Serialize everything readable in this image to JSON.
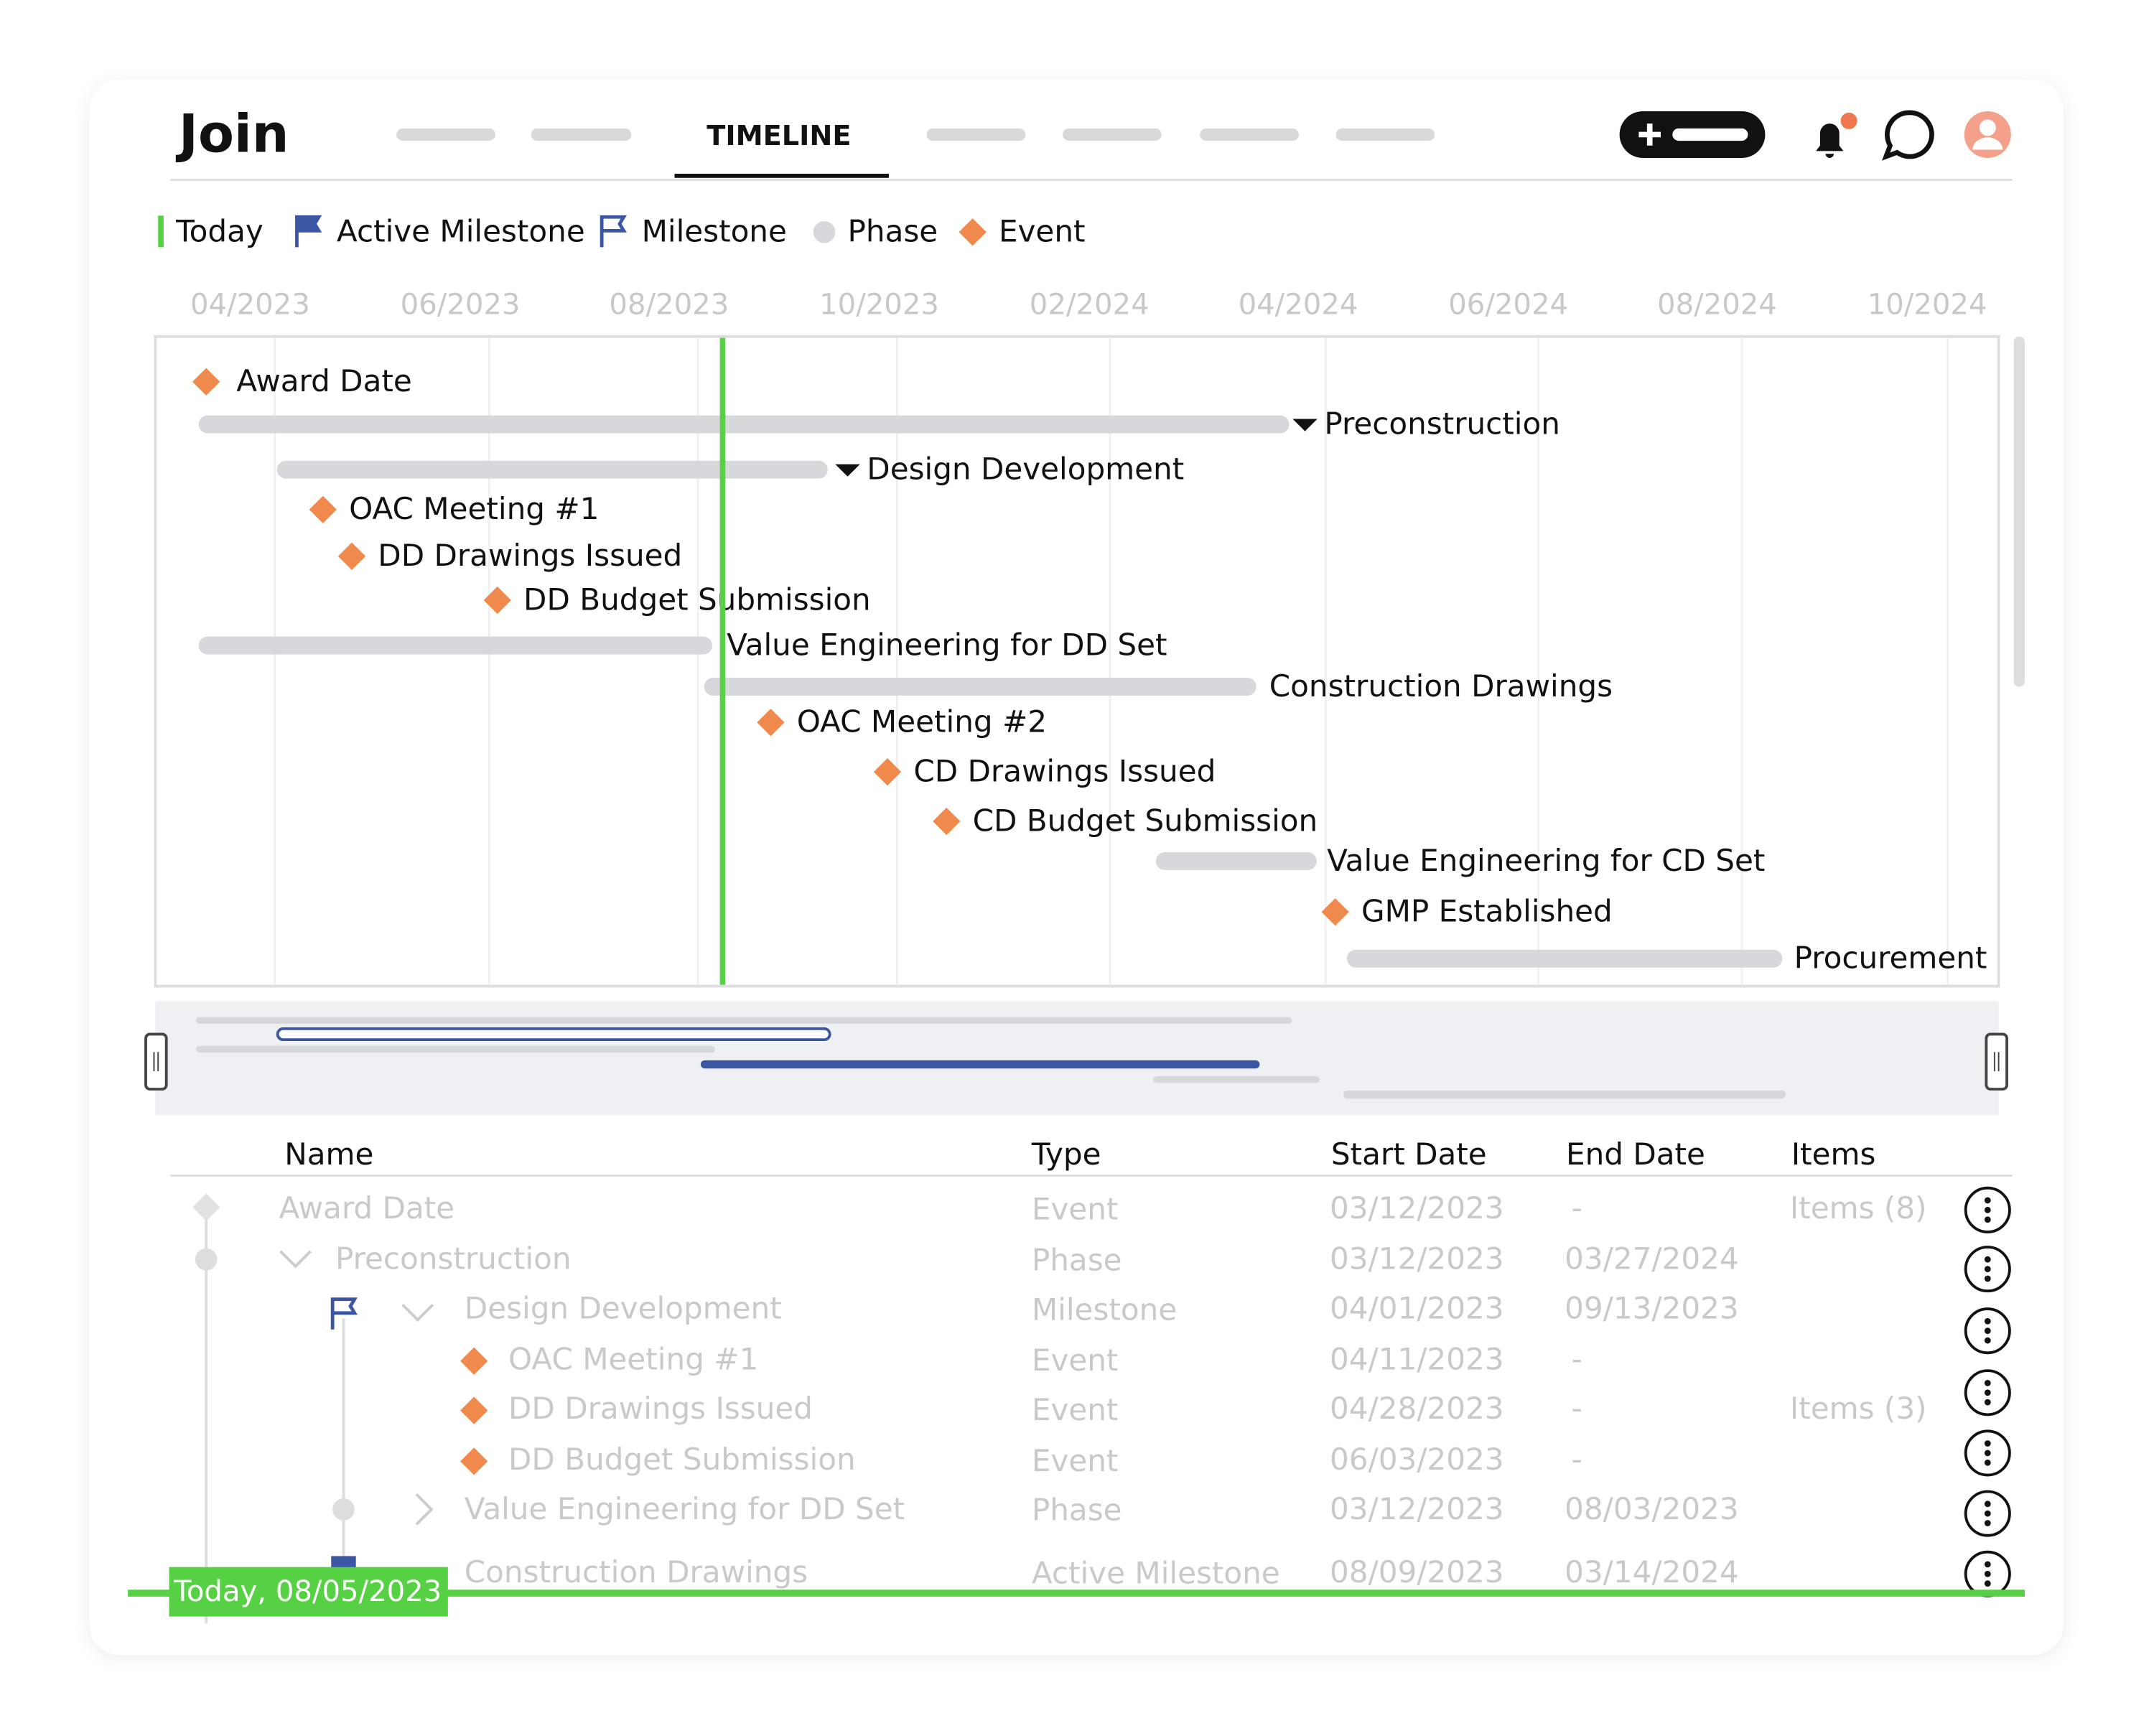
{
  "header": {
    "logo": "Join",
    "active_tab": "TIMELINE"
  },
  "legend": [
    "Today",
    "Active Milestone",
    "Milestone",
    "Phase",
    "Event"
  ],
  "timeline": {
    "date_labels": [
      "04/2023",
      "06/2023",
      "08/2023",
      "10/2023",
      "02/2024",
      "04/2024",
      "06/2024",
      "08/2024",
      "10/2024"
    ],
    "rows": [
      "Award Date",
      "Preconstruction",
      "Design Development",
      "OAC Meeting #1",
      "DD Drawings Issued",
      "DD Budget Submission",
      "Value Engineering for DD Set",
      "Construction Drawings",
      "OAC Meeting #2",
      "CD Drawings Issued",
      "CD Budget Submission",
      "Value Engineering for CD Set",
      "GMP Established",
      "Procurement"
    ]
  },
  "table": {
    "columns": [
      "Name",
      "Type",
      "Start Date",
      "End Date",
      "Items"
    ],
    "rows": [
      [
        "Award Date",
        "Event",
        "03/12/2023",
        "-",
        "Items (8)"
      ],
      [
        "Preconstruction",
        "Phase",
        "03/12/2023",
        "03/27/2024",
        null
      ],
      [
        "Design Development",
        "Milestone",
        "04/01/2023",
        "09/13/2023",
        null
      ],
      [
        "OAC Meeting #1",
        "Event",
        "04/11/2023",
        "-",
        null
      ],
      [
        "DD Drawings Issued",
        "Event",
        "04/28/2023",
        "-",
        "Items (3)"
      ],
      [
        "DD Budget Submission",
        "Event",
        "06/03/2023",
        "-",
        null
      ],
      [
        "Value Engineering for DD Set",
        "Phase",
        "03/12/2023",
        "08/03/2023",
        null
      ],
      [
        "Construction Drawings",
        "Active Milestone",
        "08/09/2023",
        "03/14/2024",
        null
      ]
    ]
  },
  "today_label": "Today, 08/05/2023"
}
